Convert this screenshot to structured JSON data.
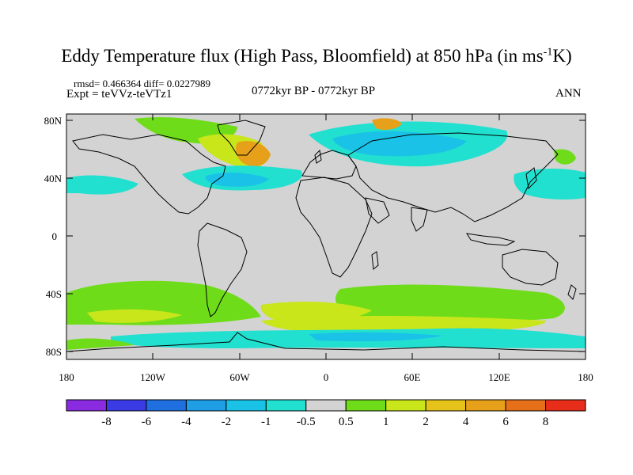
{
  "title_main": "Eddy Temperature flux (High Pass, Bloomfield) at 850 hPa (in ms",
  "title_sup": "-1",
  "title_end": "K)",
  "stats": "rmsd= 0.466364  diff= 0.0227989",
  "expt": "Expt = teVVz-teVTz1",
  "period": "0772kyr BP - 0772kyr BP",
  "season": "ANN",
  "lat_ticks": [
    "80N",
    "40N",
    "0",
    "40S",
    "80S"
  ],
  "lon_ticks": [
    "180",
    "120W",
    "60W",
    "0",
    "60E",
    "120E",
    "180"
  ],
  "colorbar": {
    "labels": [
      "-8",
      "-6",
      "-4",
      "-2",
      "-1",
      "-0.5",
      "0.5",
      "1",
      "2",
      "4",
      "6",
      "8"
    ],
    "colors": [
      "#8a2be2",
      "#3b3be6",
      "#1f6fe0",
      "#1f9ee6",
      "#19c2e6",
      "#22e0d0",
      "#d3d3d3",
      "#6fdc1a",
      "#c8e61a",
      "#e6c31a",
      "#e6a01a",
      "#e6701a",
      "#e62e1a"
    ]
  },
  "map": {
    "lon_range": [
      -180,
      180
    ],
    "lat_range": [
      -90,
      90
    ],
    "background": "#d3d3d3",
    "anomalies": [
      {
        "label": "n-atlantic-positive",
        "color": "#e6c31a",
        "lon": -55,
        "lat": 48
      },
      {
        "label": "n-atlantic-negative",
        "color": "#22e0d0",
        "lon": -40,
        "lat": 38
      },
      {
        "label": "eurasia-negative",
        "color": "#1f9ee6",
        "lon": 40,
        "lat": 62
      },
      {
        "label": "n-pacific-negative",
        "color": "#22e0d0",
        "lon": 150,
        "lat": 38
      },
      {
        "label": "southern-ocean-positive",
        "color": "#6fdc1a",
        "lon": -90,
        "lat": -45
      },
      {
        "label": "southern-ocean-positive-2",
        "color": "#c8e61a",
        "lon": 0,
        "lat": -62
      },
      {
        "label": "antarctic-margin-negative",
        "color": "#22e0d0",
        "lon": 60,
        "lat": -70
      }
    ]
  }
}
